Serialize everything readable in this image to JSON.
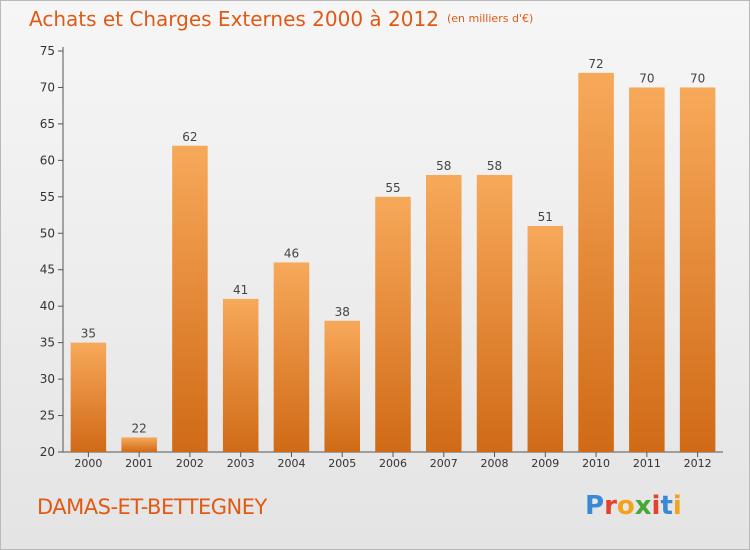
{
  "header": {
    "title": "Achats et Charges Externes 2000 à 2012",
    "unit": "(en milliers d'€)"
  },
  "footer": {
    "commune": "DAMAS-ET-BETTEGNEY",
    "brand": "Proxiti",
    "brand_colors": [
      "#3a88d6",
      "#e6412b",
      "#f3a21d",
      "#45a837",
      "#e6412b",
      "#3a88d6",
      "#f3a21d"
    ]
  },
  "colors": {
    "bar_light": "#f7a95a",
    "bar_dark": "#d06a16",
    "accent_text": "#e05a16"
  },
  "chart_data": {
    "type": "bar",
    "title": "Achats et Charges Externes 2000 à 2012",
    "subtitle": "(en milliers d'€)",
    "categories": [
      "2000",
      "2001",
      "2002",
      "2003",
      "2004",
      "2005",
      "2006",
      "2007",
      "2008",
      "2009",
      "2010",
      "2011",
      "2012"
    ],
    "values": [
      35,
      22,
      62,
      41,
      46,
      38,
      55,
      58,
      58,
      51,
      72,
      70,
      70
    ],
    "ylim": [
      20,
      75
    ],
    "yticks": [
      20,
      25,
      30,
      35,
      40,
      45,
      50,
      55,
      60,
      65,
      70,
      75
    ],
    "grid": false,
    "data_labels": true
  }
}
